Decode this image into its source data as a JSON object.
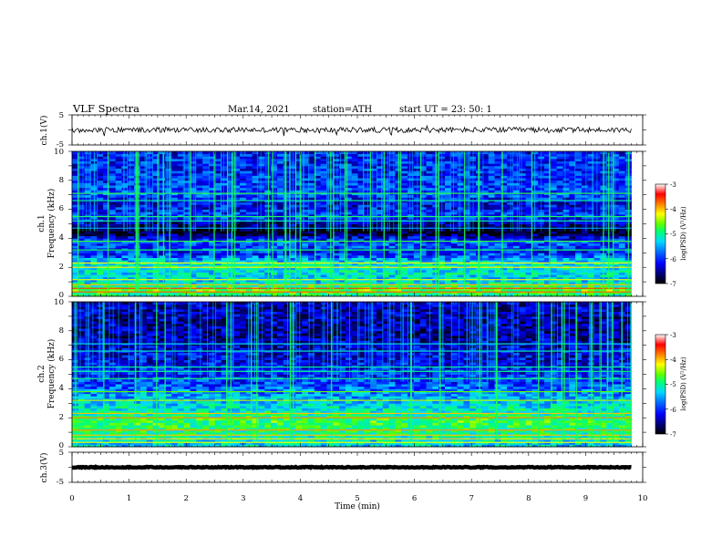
{
  "header": {
    "title": "VLF  Spectra",
    "date": "Mar.14, 2021",
    "station": "station=ATH",
    "start": "start  UT  =    23: 50: 1"
  },
  "colors": {
    "scale": [
      "#000000",
      "#00007a",
      "#0000ff",
      "#0070ff",
      "#00d8ff",
      "#00ff7a",
      "#60ff00",
      "#ffff00",
      "#ff8000",
      "#ff0000",
      "#ffffff"
    ]
  },
  "chart_data": [
    {
      "type": "line",
      "ylabel": "ch.1(V)",
      "ylim": [
        -5,
        5
      ],
      "yticks": [
        "5",
        "-5"
      ],
      "baseline": 0,
      "noise_amplitude": 0.9,
      "color": "#000000"
    },
    {
      "type": "heatmap",
      "ylabel": "ch.1\nFrequency (kHz)",
      "ylim": [
        0,
        10
      ],
      "yticks": [
        "0",
        "2",
        "4",
        "6",
        "8",
        "10"
      ],
      "colorbar": {
        "label": "log(PSD) (V²/Hz)",
        "range": [
          -7,
          -3
        ],
        "ticks": [
          "-3",
          "-4",
          "-5",
          "-6",
          "-7"
        ]
      },
      "frequency_profile_log_psd": [
        {
          "f_khz": 0.1,
          "level": -5.0
        },
        {
          "f_khz": 0.5,
          "level": -4.6
        },
        {
          "f_khz": 1.0,
          "level": -5.4
        },
        {
          "f_khz": 1.8,
          "level": -5.3
        },
        {
          "f_khz": 2.2,
          "level": -5.2
        },
        {
          "f_khz": 3.0,
          "level": -6.1
        },
        {
          "f_khz": 3.8,
          "level": -5.9
        },
        {
          "f_khz": 4.5,
          "level": -7.0
        },
        {
          "f_khz": 5.5,
          "level": -6.0
        },
        {
          "f_khz": 6.5,
          "level": -6.3
        },
        {
          "f_khz": 7.0,
          "level": -5.9
        },
        {
          "f_khz": 8.5,
          "level": -6.1
        },
        {
          "f_khz": 10.0,
          "level": -6.1
        }
      ]
    },
    {
      "type": "heatmap",
      "ylabel": "ch.2\nFrequency (kHz)",
      "ylim": [
        0,
        10
      ],
      "yticks": [
        "0",
        "2",
        "4",
        "6",
        "8",
        "10"
      ],
      "colorbar": {
        "label": "log(PSD) (V²/Hz)",
        "range": [
          -7,
          -3
        ],
        "ticks": [
          "-3",
          "-4",
          "-5",
          "-6",
          "-7"
        ]
      },
      "frequency_profile_log_psd": [
        {
          "f_khz": 0.2,
          "level": -5.4
        },
        {
          "f_khz": 1.0,
          "level": -5.0
        },
        {
          "f_khz": 1.8,
          "level": -4.8
        },
        {
          "f_khz": 2.5,
          "level": -5.2
        },
        {
          "f_khz": 3.5,
          "level": -5.6
        },
        {
          "f_khz": 4.5,
          "level": -6.0
        },
        {
          "f_khz": 5.5,
          "level": -6.2
        },
        {
          "f_khz": 6.5,
          "level": -6.3
        },
        {
          "f_khz": 7.5,
          "level": -6.5
        },
        {
          "f_khz": 10.0,
          "level": -6.4
        }
      ]
    },
    {
      "type": "line",
      "ylabel": "ch.3(V)",
      "ylim": [
        -5,
        5
      ],
      "yticks": [
        "5",
        "-5"
      ],
      "baseline": 0,
      "noise_amplitude": 0.15,
      "color": "#000000"
    }
  ],
  "xaxis": {
    "label": "Time  (min)",
    "range": [
      0,
      10
    ],
    "ticks": [
      "0",
      "1",
      "2",
      "3",
      "4",
      "5",
      "6",
      "7",
      "8",
      "9",
      "10"
    ],
    "data_end_min": 9.8
  }
}
